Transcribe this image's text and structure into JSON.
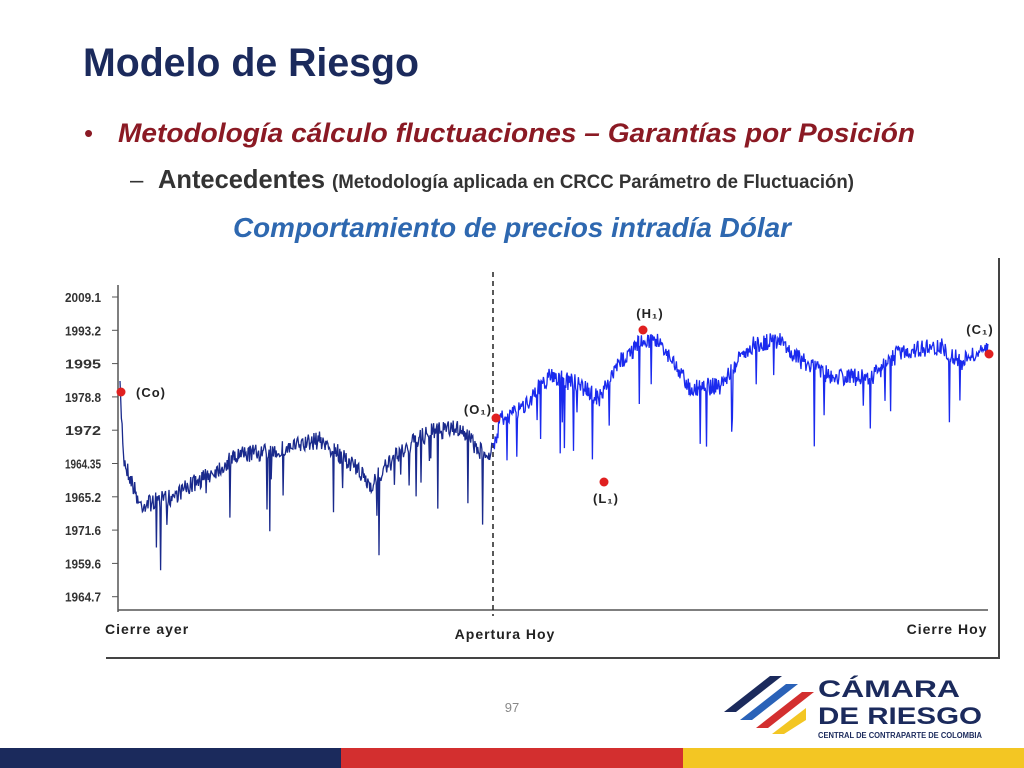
{
  "title": "Modelo de Riesgo",
  "bullet": "Metodología cálculo fluctuaciones – Garantías por Posición",
  "sub_bullet": {
    "label": "Antecedentes",
    "note": "(Metodología aplicada en CRCC Parámetro de Fluctuación)"
  },
  "figure": {
    "title": "Comportamiento de precios intradía Dólar",
    "y_labels": [
      "2009.1",
      "1993.2",
      "1995",
      "1978.8",
      "1972",
      "1964.35",
      "1965.2",
      "1971.6",
      "1959.6",
      "1964.7"
    ],
    "x_labels": [
      "Cierre ayer",
      "Apertura Hoy",
      "Cierre Hoy"
    ],
    "points": [
      "(Co)",
      "(O₁)",
      "(H₁)",
      "(L₁)",
      "(C₁)"
    ]
  },
  "page_number": "97",
  "logo": {
    "line1": "CÁMARA",
    "line2": "DE RIESGO",
    "tagline": "CENTRAL DE CONTRAPARTE DE COLOMBIA"
  }
}
